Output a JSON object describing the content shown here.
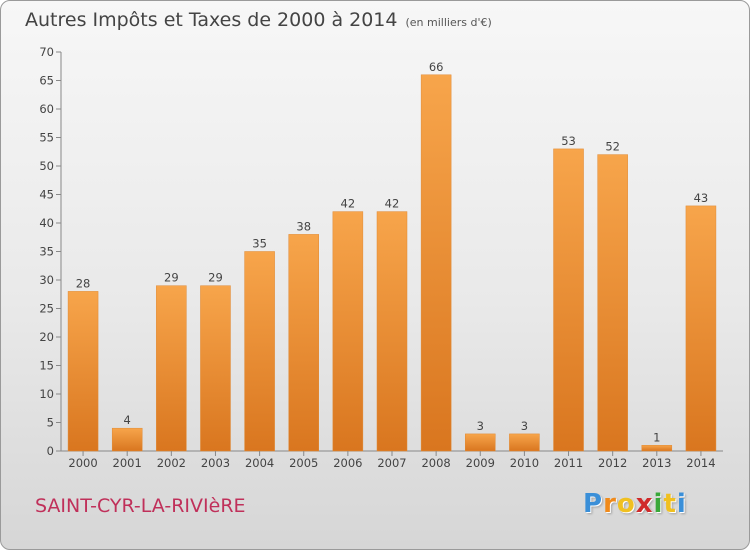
{
  "chart_data": {
    "type": "bar",
    "title": "Autres Impôts et Taxes de 2000 à 2014",
    "subtitle": "(en milliers d'€)",
    "categories": [
      "2000",
      "2001",
      "2002",
      "2003",
      "2004",
      "2005",
      "2006",
      "2007",
      "2008",
      "2009",
      "2010",
      "2011",
      "2012",
      "2013",
      "2014"
    ],
    "values": [
      28,
      4,
      29,
      29,
      35,
      38,
      42,
      42,
      66,
      3,
      3,
      53,
      52,
      1,
      43
    ],
    "ylim": [
      0,
      70
    ],
    "yticks": [
      0,
      5,
      10,
      15,
      20,
      25,
      30,
      35,
      40,
      45,
      50,
      55,
      60,
      65,
      70
    ],
    "grid": false,
    "bar_color_light": "#f7a54b",
    "bar_color_dark": "#d9761f",
    "xlabel": "",
    "ylabel": ""
  },
  "footer": {
    "commune": "SAINT-CYR-LA-RIVIèRE",
    "logo_letters": [
      "P",
      "r",
      "o",
      "x",
      "i",
      "t",
      "i"
    ],
    "logo_colors": [
      "#3a8fd8",
      "#f08a1a",
      "#f0c020",
      "#d02a2a",
      "#3aa83a",
      "#f0c020",
      "#3a8fd8"
    ]
  }
}
